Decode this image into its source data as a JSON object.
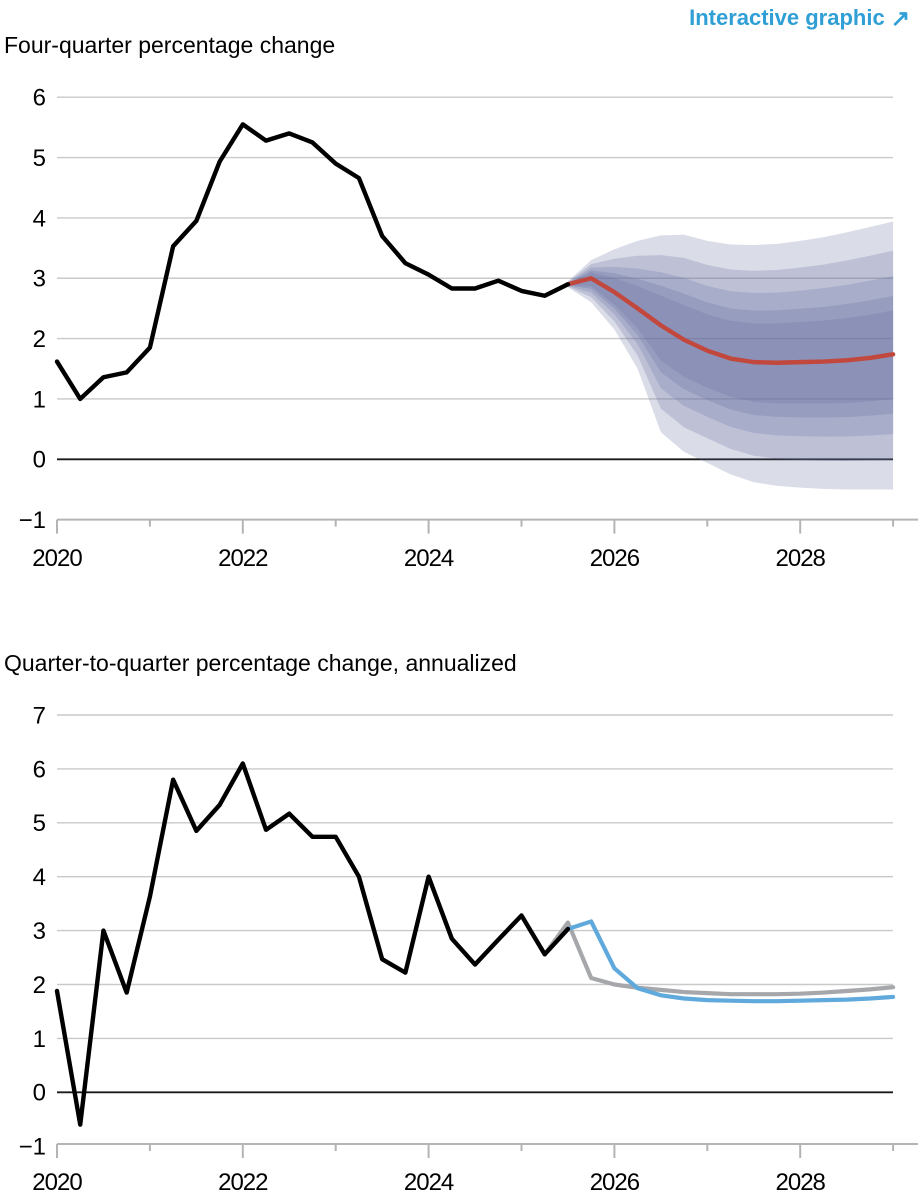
{
  "header": {
    "link_label": "Interactive graphic",
    "link_arrow": "↗",
    "link_color": "#2f9fd6"
  },
  "chart_data": [
    {
      "type": "line",
      "title": "Four-quarter percentage change",
      "ylim": [
        -1,
        6
      ],
      "yticks": [
        -1,
        0,
        1,
        2,
        3,
        4,
        5,
        6
      ],
      "x_years": [
        2020,
        2021,
        2022,
        2023,
        2024,
        2025,
        2026,
        2027,
        2028,
        2029
      ],
      "x_labeled_years": [
        "2020",
        "2022",
        "2024",
        "2026",
        "2028"
      ],
      "x_range": [
        2020.0,
        2029.0
      ],
      "x_step": 0.25,
      "grid": "horizontal-only",
      "legend": "none",
      "colors": {
        "history": "#000000",
        "forecast": "#c2473d",
        "fan": "#646e9f"
      },
      "history": {
        "name": "history",
        "x_start": 2020.0,
        "values": [
          1.62,
          1.0,
          1.36,
          1.44,
          1.85,
          3.53,
          3.95,
          4.93,
          5.55,
          5.28,
          5.4,
          5.25,
          4.9,
          4.66,
          3.7,
          3.25,
          3.06,
          2.83,
          2.83,
          2.96,
          2.79,
          2.71,
          2.9
        ]
      },
      "forecast": {
        "name": "forecast-mean",
        "x_start": 2025.5,
        "values": [
          2.9,
          3.0,
          2.77,
          2.5,
          2.22,
          1.98,
          1.8,
          1.67,
          1.61,
          1.6,
          1.61,
          1.62,
          1.64,
          1.68,
          1.74
        ]
      },
      "fan": {
        "name": "uncertainty-bands",
        "x_start": 2025.5,
        "band_fractions": [
          1.0,
          0.78,
          0.59,
          0.44,
          0.33
        ],
        "band_opacity": 0.24,
        "top90": [
          2.95,
          3.3,
          3.48,
          3.62,
          3.71,
          3.72,
          3.62,
          3.56,
          3.55,
          3.57,
          3.62,
          3.68,
          3.76,
          3.85,
          3.94
        ],
        "bot90": [
          2.85,
          2.6,
          2.15,
          1.5,
          0.45,
          0.12,
          -0.06,
          -0.25,
          -0.38,
          -0.44,
          -0.47,
          -0.49,
          -0.5,
          -0.5,
          -0.5
        ]
      }
    },
    {
      "type": "line",
      "title": "Quarter-to-quarter percentage change, annualized",
      "ylim": [
        -1,
        7
      ],
      "yticks": [
        -1,
        0,
        1,
        2,
        3,
        4,
        5,
        6,
        7
      ],
      "x_years": [
        2020,
        2021,
        2022,
        2023,
        2024,
        2025,
        2026,
        2027,
        2028,
        2029
      ],
      "x_labeled_years": [
        "2020",
        "2022",
        "2024",
        "2026",
        "2028"
      ],
      "x_range": [
        2020.0,
        2029.0
      ],
      "x_step": 0.25,
      "grid": "horizontal-only",
      "legend": "none",
      "colors": {
        "history": "#000000",
        "current_forecast": "#5fa9dc",
        "previous_forecast": "#a5a7ab"
      },
      "history": {
        "name": "history",
        "x_start": 2020.0,
        "values": [
          1.88,
          -0.6,
          3.0,
          1.85,
          3.63,
          5.8,
          4.85,
          5.33,
          6.1,
          4.87,
          5.17,
          4.74,
          4.74,
          4.0,
          2.47,
          2.22,
          4.0,
          2.85,
          2.37,
          2.83,
          3.28,
          2.56,
          3.03
        ]
      },
      "series": [
        {
          "name": "previous-forecast",
          "color_key": "previous_forecast",
          "x_start": 2025.25,
          "values": [
            2.56,
            3.15,
            2.12,
            2.0,
            1.94,
            1.9,
            1.86,
            1.84,
            1.82,
            1.82,
            1.82,
            1.83,
            1.85,
            1.88,
            1.91,
            1.95
          ]
        },
        {
          "name": "current-forecast",
          "color_key": "current_forecast",
          "x_start": 2025.5,
          "values": [
            3.03,
            3.17,
            2.3,
            1.93,
            1.8,
            1.74,
            1.71,
            1.7,
            1.69,
            1.69,
            1.7,
            1.71,
            1.72,
            1.74,
            1.77
          ]
        }
      ]
    }
  ]
}
